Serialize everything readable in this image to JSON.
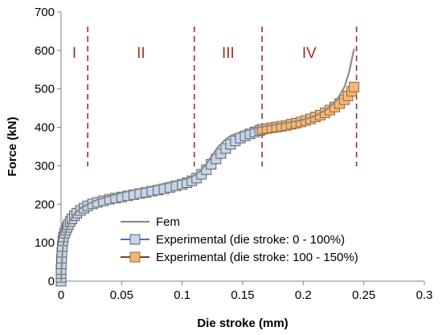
{
  "chart_data": {
    "type": "line",
    "xlabel": "Die stroke (mm)",
    "ylabel": "Force (kN)",
    "xlim": [
      0,
      0.3
    ],
    "ylim": [
      0,
      700
    ],
    "xticks": [
      0,
      0.05,
      0.1,
      0.15,
      0.2,
      0.25,
      0.3
    ],
    "xtick_labels": [
      "0",
      "0.05",
      "0.1",
      "0.15",
      "0.2",
      "0.25",
      "0.3"
    ],
    "yticks": [
      0,
      100,
      200,
      300,
      400,
      500,
      600,
      700
    ],
    "ytick_labels": [
      "0",
      "100",
      "200",
      "300",
      "400",
      "500",
      "600",
      "700"
    ],
    "grid": false,
    "legend_position": "bottom-right",
    "regions": [
      {
        "label": "I",
        "x_start": 0,
        "x_end": 0.022
      },
      {
        "label": "II",
        "x_start": 0.022,
        "x_end": 0.11
      },
      {
        "label": "III",
        "x_start": 0.11,
        "x_end": 0.166
      },
      {
        "label": "IV",
        "x_start": 0.166,
        "x_end": 0.244
      }
    ],
    "boundaries": [
      0.022,
      0.11,
      0.166,
      0.244
    ],
    "region_color": "#a0302a",
    "series": [
      {
        "name": "Fem",
        "style": "line",
        "color": "#8c8c8c",
        "points": [
          [
            0,
            0
          ],
          [
            0.0005,
            40
          ],
          [
            0.001,
            70
          ],
          [
            0.002,
            100
          ],
          [
            0.004,
            130
          ],
          [
            0.007,
            155
          ],
          [
            0.011,
            175
          ],
          [
            0.016,
            190
          ],
          [
            0.022,
            200
          ],
          [
            0.03,
            212
          ],
          [
            0.04,
            222
          ],
          [
            0.05,
            230
          ],
          [
            0.06,
            237
          ],
          [
            0.07,
            243
          ],
          [
            0.08,
            250
          ],
          [
            0.09,
            257
          ],
          [
            0.1,
            264
          ],
          [
            0.105,
            268
          ],
          [
            0.11,
            275
          ],
          [
            0.115,
            287
          ],
          [
            0.12,
            305
          ],
          [
            0.125,
            328
          ],
          [
            0.13,
            350
          ],
          [
            0.135,
            366
          ],
          [
            0.14,
            378
          ],
          [
            0.15,
            390
          ],
          [
            0.16,
            398
          ],
          [
            0.17,
            404
          ],
          [
            0.18,
            409
          ],
          [
            0.19,
            414
          ],
          [
            0.2,
            420
          ],
          [
            0.21,
            430
          ],
          [
            0.22,
            448
          ],
          [
            0.228,
            472
          ],
          [
            0.234,
            505
          ],
          [
            0.238,
            545
          ],
          [
            0.242,
            605
          ]
        ]
      },
      {
        "name": "Experimental (die stroke: 0 - 100%)",
        "style": "marker",
        "line_color": "#4472c4",
        "fill": "#c5d4ea",
        "stroke": "#555555",
        "points": [
          [
            0,
            0
          ],
          [
            0,
            10
          ],
          [
            0,
            20
          ],
          [
            0,
            30
          ],
          [
            0.0002,
            45
          ],
          [
            0.0004,
            60
          ],
          [
            0.0007,
            75
          ],
          [
            0.001,
            90
          ],
          [
            0.0015,
            105
          ],
          [
            0.002,
            115
          ],
          [
            0.003,
            125
          ],
          [
            0.004,
            133
          ],
          [
            0.005,
            140
          ],
          [
            0.006,
            147
          ],
          [
            0.0075,
            155
          ],
          [
            0.009,
            162
          ],
          [
            0.011,
            170
          ],
          [
            0.013,
            177
          ],
          [
            0.016,
            184
          ],
          [
            0.019,
            190
          ],
          [
            0.022,
            196
          ],
          [
            0.026,
            201
          ],
          [
            0.03,
            205
          ],
          [
            0.035,
            209
          ],
          [
            0.04,
            213
          ],
          [
            0.045,
            216
          ],
          [
            0.05,
            219
          ],
          [
            0.055,
            222
          ],
          [
            0.06,
            225
          ],
          [
            0.065,
            228
          ],
          [
            0.07,
            231
          ],
          [
            0.075,
            234
          ],
          [
            0.08,
            237
          ],
          [
            0.085,
            240
          ],
          [
            0.09,
            244
          ],
          [
            0.095,
            248
          ],
          [
            0.1,
            252
          ],
          [
            0.104,
            256
          ],
          [
            0.108,
            261
          ],
          [
            0.112,
            268
          ],
          [
            0.116,
            278
          ],
          [
            0.12,
            290
          ],
          [
            0.124,
            304
          ],
          [
            0.128,
            318
          ],
          [
            0.132,
            332
          ],
          [
            0.136,
            345
          ],
          [
            0.14,
            356
          ],
          [
            0.144,
            365
          ],
          [
            0.148,
            372
          ],
          [
            0.152,
            378
          ],
          [
            0.156,
            383
          ],
          [
            0.16,
            388
          ],
          [
            0.164,
            392
          ],
          [
            0.166,
            395
          ]
        ]
      },
      {
        "name": "Experimental (die stroke: 100 - 150%)",
        "style": "marker",
        "line_color": "#7f3f1f",
        "fill": "#f2b878",
        "stroke": "#8c5a2c",
        "points": [
          [
            0.166,
            395
          ],
          [
            0.17,
            397
          ],
          [
            0.174,
            399
          ],
          [
            0.178,
            401
          ],
          [
            0.182,
            403
          ],
          [
            0.186,
            405
          ],
          [
            0.19,
            408
          ],
          [
            0.194,
            411
          ],
          [
            0.198,
            414
          ],
          [
            0.202,
            418
          ],
          [
            0.206,
            422
          ],
          [
            0.21,
            427
          ],
          [
            0.214,
            432
          ],
          [
            0.218,
            438
          ],
          [
            0.222,
            445
          ],
          [
            0.226,
            453
          ],
          [
            0.23,
            462
          ],
          [
            0.234,
            472
          ],
          [
            0.237,
            482
          ],
          [
            0.24,
            494
          ],
          [
            0.242,
            505
          ]
        ]
      }
    ]
  }
}
